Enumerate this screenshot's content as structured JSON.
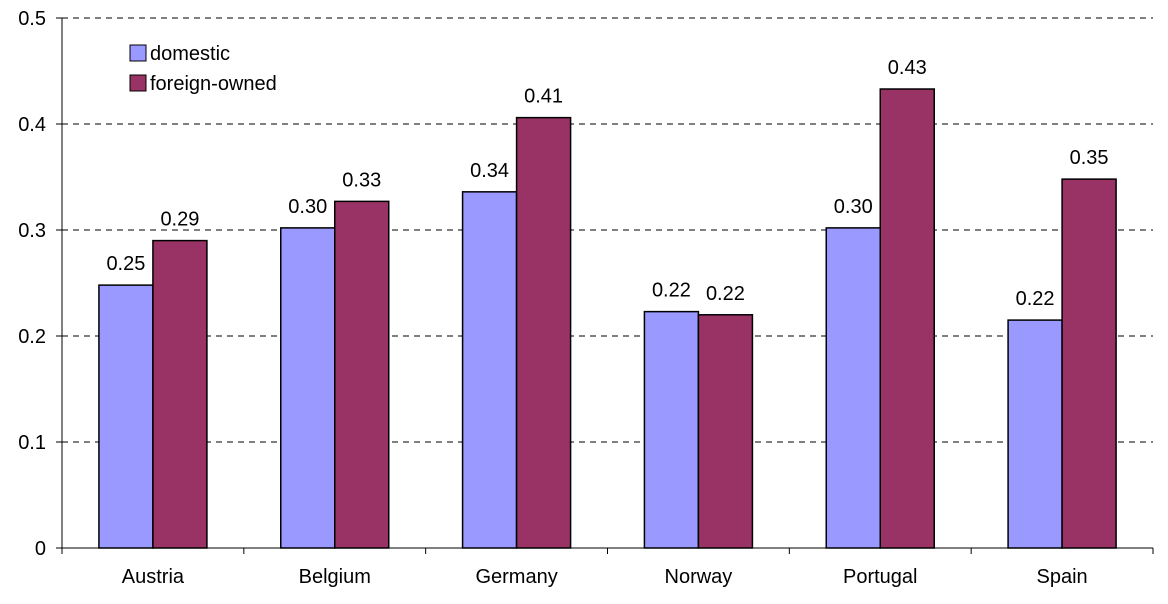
{
  "chart_data": {
    "type": "bar",
    "categories": [
      "Austria",
      "Belgium",
      "Germany",
      "Norway",
      "Portugal",
      "Spain"
    ],
    "series": [
      {
        "name": "domestic",
        "color": "#9999FF",
        "values": [
          0.248,
          0.302,
          0.336,
          0.223,
          0.302,
          0.215
        ],
        "labels": [
          "0.25",
          "0.30",
          "0.34",
          "0.22",
          "0.30",
          "0.22"
        ]
      },
      {
        "name": "foreign-owned",
        "color": "#993366",
        "values": [
          0.29,
          0.327,
          0.406,
          0.22,
          0.433,
          0.348
        ],
        "labels": [
          "0.29",
          "0.33",
          "0.41",
          "0.22",
          "0.43",
          "0.35"
        ]
      }
    ],
    "ylim": [
      0,
      0.5
    ],
    "yticks": [
      0,
      0.1,
      0.2,
      0.3,
      0.4,
      0.5
    ],
    "ytick_labels": [
      "0",
      "0.1",
      "0.2",
      "0.3",
      "0.4",
      "0.5"
    ],
    "grid": "horizontal-dashed",
    "legend_position": "top-left",
    "title": "",
    "xlabel": "",
    "ylabel": ""
  }
}
